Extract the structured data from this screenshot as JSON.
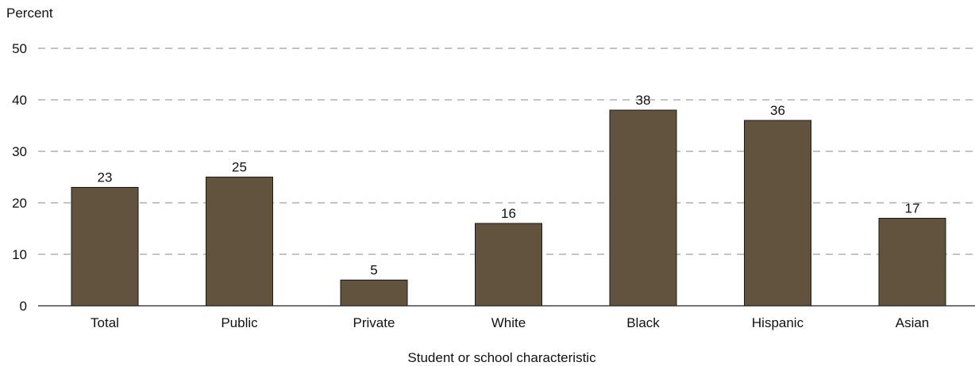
{
  "chart_data": {
    "type": "bar",
    "ylabel": "Percent",
    "xlabel": "Student or school characteristic",
    "categories": [
      "Total",
      "Public",
      "Private",
      "White",
      "Black",
      "Hispanic",
      "Asian"
    ],
    "values": [
      23,
      25,
      5,
      16,
      38,
      36,
      17
    ],
    "ylim": [
      0,
      50
    ],
    "yticks": [
      0,
      10,
      20,
      30,
      40,
      50
    ],
    "grid": true,
    "bar_color": "#62533f"
  }
}
